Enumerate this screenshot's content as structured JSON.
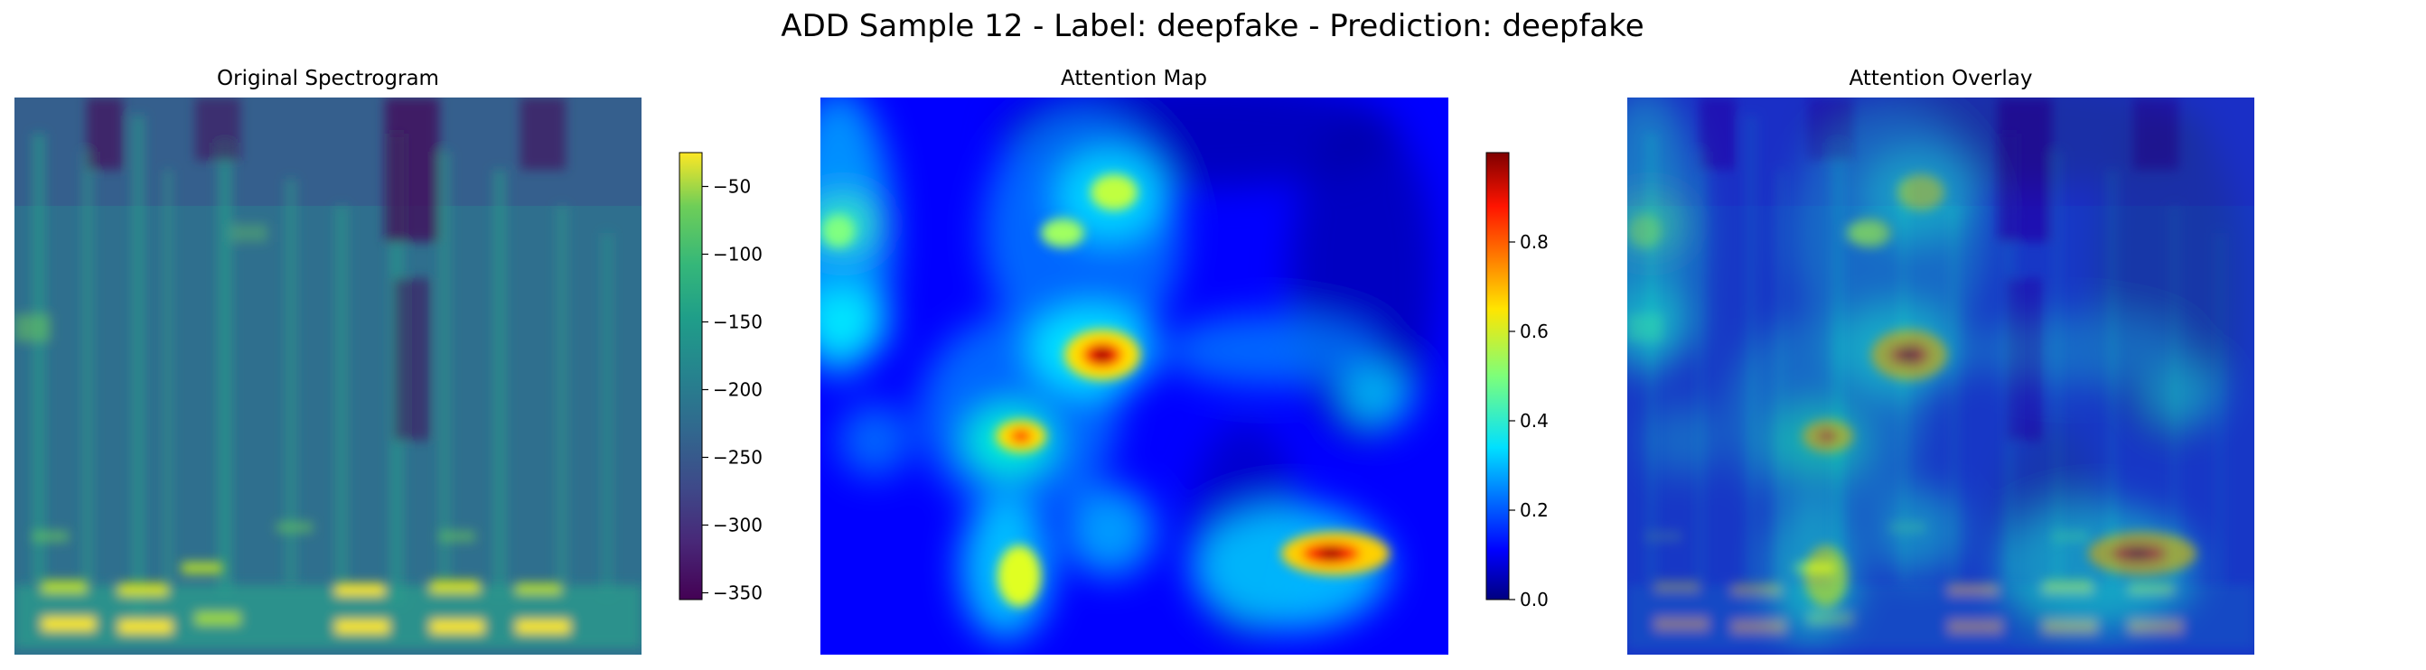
{
  "figure": {
    "title": "ADD Sample 12 - Label: deepfake - Prediction: deepfake"
  },
  "chart_data": [
    {
      "type": "heatmap",
      "title": "Original Spectrogram",
      "colormap": "viridis",
      "axes": "off",
      "colorbar": {
        "vmin": -355,
        "vmax": -25,
        "ticks": [
          -50,
          -100,
          -150,
          -200,
          -250,
          -300,
          -350
        ]
      }
    },
    {
      "type": "heatmap",
      "title": "Attention Map",
      "colormap": "jet",
      "axes": "off",
      "colorbar": {
        "vmin": 0.0,
        "vmax": 1.0,
        "ticks": [
          0.0,
          0.2,
          0.4,
          0.6,
          0.8
        ]
      },
      "hotspots": [
        {
          "x": 0.45,
          "y": 0.46,
          "intensity": 1.0,
          "label": ""
        },
        {
          "x": 0.82,
          "y": 0.82,
          "intensity": 0.95,
          "label": ""
        },
        {
          "x": 0.32,
          "y": 0.61,
          "intensity": 0.75,
          "label": ""
        },
        {
          "x": 0.47,
          "y": 0.17,
          "intensity": 0.6,
          "label": ""
        },
        {
          "x": 0.32,
          "y": 0.86,
          "intensity": 0.6,
          "label": ""
        }
      ]
    },
    {
      "type": "heatmap",
      "title": "Attention Overlay",
      "colormap": "jet over viridis",
      "axes": "off"
    }
  ]
}
